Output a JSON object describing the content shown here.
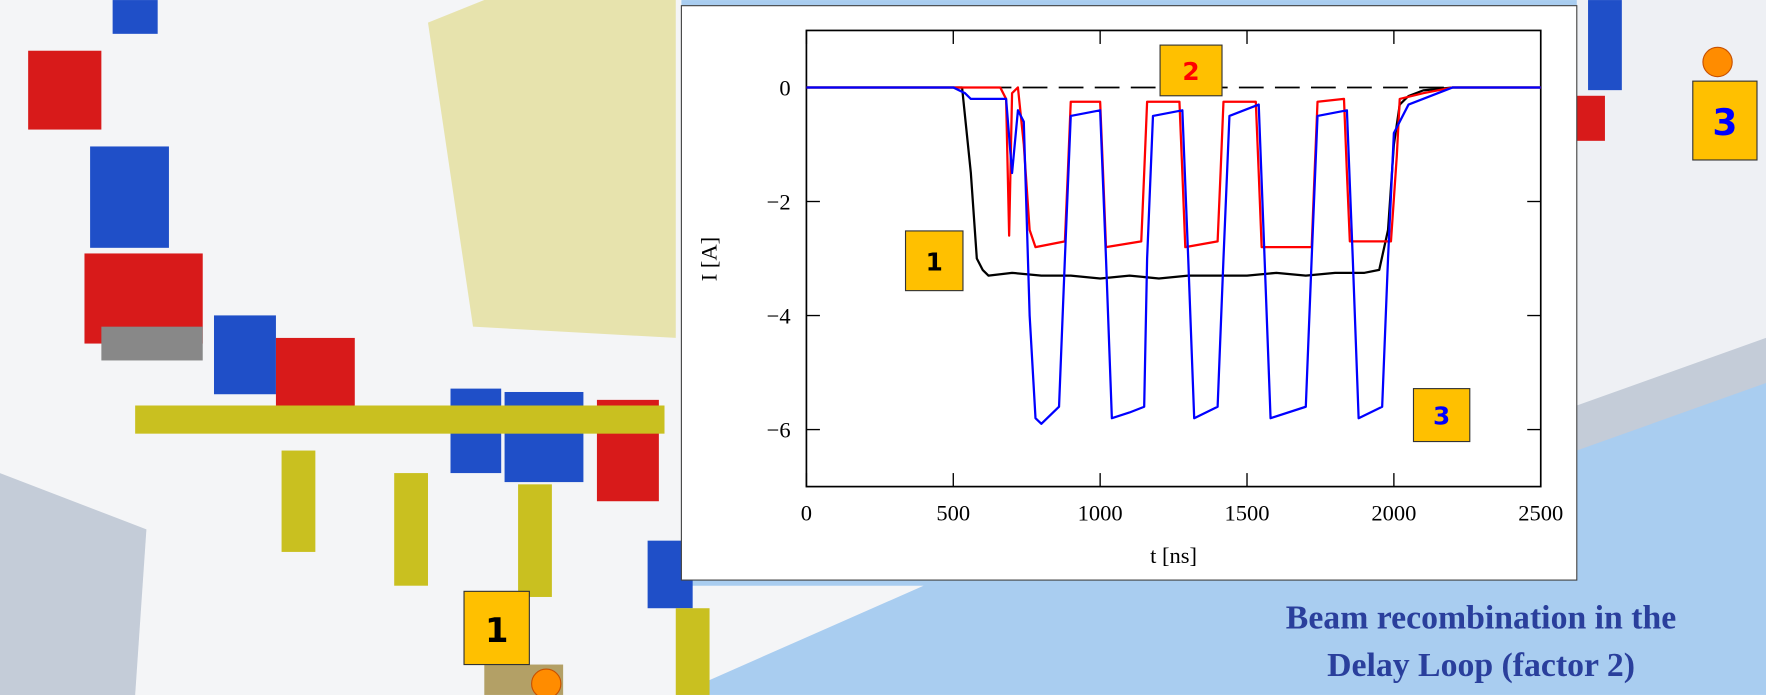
{
  "chart_data": {
    "type": "line",
    "xlabel": "t [ns]",
    "ylabel": "I [A]",
    "xlim": [
      0,
      2500
    ],
    "ylim": [
      -7,
      1
    ],
    "xticks": [
      0,
      500,
      1000,
      1500,
      2000,
      2500
    ],
    "yticks": [
      {
        "value": 0,
        "label": "0"
      },
      {
        "value": -2,
        "label": "−2"
      },
      {
        "value": -4,
        "label": "−4"
      },
      {
        "value": -6,
        "label": "−6"
      }
    ],
    "reference_line": 0,
    "annotations": [
      "1",
      "2",
      "3"
    ],
    "series": [
      {
        "color": "#000000",
        "x": [
          0,
          500,
          530,
          560,
          580,
          600,
          620,
          700,
          800,
          900,
          1000,
          1100,
          1200,
          1300,
          1400,
          1500,
          1600,
          1700,
          1800,
          1900,
          1950,
          1980,
          2000,
          2020,
          2050,
          2100,
          2200,
          2500
        ],
        "values": [
          0,
          0,
          0,
          -1.5,
          -3.0,
          -3.2,
          -3.3,
          -3.25,
          -3.3,
          -3.3,
          -3.35,
          -3.3,
          -3.35,
          -3.3,
          -3.3,
          -3.3,
          -3.25,
          -3.3,
          -3.25,
          -3.25,
          -3.2,
          -2.5,
          -1.0,
          -0.3,
          -0.15,
          -0.05,
          0,
          0
        ]
      },
      {
        "color": "#ff0000",
        "x": [
          0,
          660,
          680,
          690,
          700,
          720,
          740,
          760,
          780,
          880,
          890,
          900,
          1000,
          1010,
          1020,
          1140,
          1150,
          1160,
          1270,
          1280,
          1290,
          1400,
          1410,
          1420,
          1530,
          1540,
          1550,
          1720,
          1730,
          1740,
          1830,
          1840,
          1850,
          1990,
          2010,
          2020,
          2100,
          2200,
          2500
        ],
        "values": [
          0,
          0,
          -0.2,
          -2.6,
          -0.1,
          0,
          -1.0,
          -2.5,
          -2.8,
          -2.7,
          -1.5,
          -0.25,
          -0.25,
          -1.5,
          -2.8,
          -2.7,
          -1.5,
          -0.25,
          -0.25,
          -1.5,
          -2.8,
          -2.7,
          -1.5,
          -0.25,
          -0.25,
          -1.5,
          -2.8,
          -2.8,
          -1.5,
          -0.25,
          -0.2,
          -1.5,
          -2.7,
          -2.7,
          -1.2,
          -0.2,
          -0.1,
          0,
          0
        ]
      },
      {
        "color": "#0000ff",
        "x": [
          0,
          500,
          540,
          560,
          680,
          700,
          720,
          740,
          760,
          780,
          800,
          860,
          880,
          900,
          1000,
          1020,
          1040,
          1100,
          1150,
          1160,
          1180,
          1280,
          1300,
          1320,
          1400,
          1420,
          1440,
          1540,
          1560,
          1580,
          1700,
          1720,
          1740,
          1840,
          1860,
          1880,
          1960,
          1980,
          2000,
          2050,
          2200,
          2500
        ],
        "values": [
          0,
          0,
          -0.1,
          -0.2,
          -0.2,
          -1.5,
          -0.4,
          -0.6,
          -4.0,
          -5.8,
          -5.9,
          -5.6,
          -3.0,
          -0.5,
          -0.4,
          -3.0,
          -5.8,
          -5.7,
          -5.6,
          -3.0,
          -0.5,
          -0.4,
          -3.0,
          -5.8,
          -5.6,
          -3.0,
          -0.5,
          -0.3,
          -3.0,
          -5.8,
          -5.6,
          -3.0,
          -0.5,
          -0.4,
          -3.0,
          -5.8,
          -5.6,
          -3.0,
          -0.8,
          -0.3,
          0,
          0
        ]
      }
    ]
  },
  "markers": [
    "1",
    "3"
  ],
  "caption": [
    "Beam recombination in the",
    "Delay Loop (factor 2)"
  ]
}
